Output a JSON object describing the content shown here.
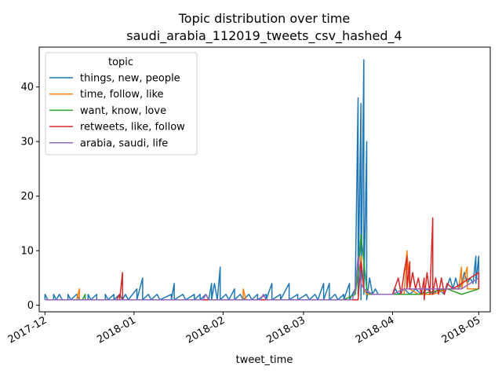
{
  "chart_data": {
    "type": "line",
    "title": "Topic distribution over time",
    "subtitle": "saudi_arabia_112019_tweets_csv_hashed_4",
    "xlabel": "tweet_time",
    "ylabel": "",
    "xlim": [
      "2017-11-29",
      "2018-05-05"
    ],
    "ylim": [
      -1.2,
      47.3
    ],
    "x_ticks": [
      "2017-12",
      "2018-01",
      "2018-02",
      "2018-03",
      "2018-04",
      "2018-05"
    ],
    "x_tick_values": [
      "2017-12-01",
      "2018-01-01",
      "2018-02-01",
      "2018-03-01",
      "2018-04-01",
      "2018-05-01"
    ],
    "y_ticks": [
      0,
      10,
      20,
      30,
      40
    ],
    "legend": {
      "title": "topic",
      "position": "upper-left"
    },
    "series": [
      {
        "name": "things, new, people",
        "color": "#1f77b4",
        "points": [
          [
            "2017-12-01",
            1
          ],
          [
            "2017-12-01",
            2
          ],
          [
            "2017-12-02",
            1
          ],
          [
            "2017-12-04",
            1
          ],
          [
            "2017-12-04",
            2
          ],
          [
            "2017-12-05",
            1
          ],
          [
            "2017-12-06",
            2
          ],
          [
            "2017-12-07",
            1
          ],
          [
            "2017-12-09",
            1
          ],
          [
            "2017-12-09",
            2
          ],
          [
            "2017-12-10",
            1
          ],
          [
            "2017-12-12",
            2
          ],
          [
            "2017-12-13",
            1
          ],
          [
            "2017-12-16",
            1
          ],
          [
            "2017-12-16",
            2
          ],
          [
            "2017-12-17",
            1
          ],
          [
            "2017-12-19",
            2
          ],
          [
            "2017-12-19",
            1
          ],
          [
            "2017-12-22",
            1
          ],
          [
            "2017-12-22",
            2
          ],
          [
            "2017-12-23",
            1
          ],
          [
            "2017-12-25",
            2
          ],
          [
            "2017-12-25",
            1
          ],
          [
            "2017-12-27",
            2
          ],
          [
            "2017-12-28",
            1
          ],
          [
            "2017-12-29",
            2
          ],
          [
            "2017-12-30",
            1
          ],
          [
            "2018-01-02",
            3
          ],
          [
            "2018-01-02",
            1
          ],
          [
            "2018-01-04",
            5
          ],
          [
            "2018-01-04",
            1
          ],
          [
            "2018-01-06",
            2
          ],
          [
            "2018-01-07",
            1
          ],
          [
            "2018-01-09",
            2
          ],
          [
            "2018-01-10",
            1
          ],
          [
            "2018-01-14",
            2
          ],
          [
            "2018-01-14",
            1
          ],
          [
            "2018-01-15",
            4
          ],
          [
            "2018-01-15",
            1
          ],
          [
            "2018-01-18",
            2
          ],
          [
            "2018-01-19",
            1
          ],
          [
            "2018-01-22",
            2
          ],
          [
            "2018-01-22",
            1
          ],
          [
            "2018-01-24",
            2
          ],
          [
            "2018-01-24",
            1
          ],
          [
            "2018-01-26",
            2
          ],
          [
            "2018-01-27",
            1
          ],
          [
            "2018-01-28",
            4
          ],
          [
            "2018-01-28",
            1
          ],
          [
            "2018-01-29",
            4
          ],
          [
            "2018-01-30",
            1
          ],
          [
            "2018-01-31",
            7
          ],
          [
            "2018-01-31",
            1
          ],
          [
            "2018-02-02",
            2
          ],
          [
            "2018-02-03",
            1
          ],
          [
            "2018-02-05",
            3
          ],
          [
            "2018-02-05",
            1
          ],
          [
            "2018-02-07",
            2
          ],
          [
            "2018-02-08",
            1
          ],
          [
            "2018-02-10",
            2
          ],
          [
            "2018-02-11",
            1
          ],
          [
            "2018-02-13",
            2
          ],
          [
            "2018-02-13",
            1
          ],
          [
            "2018-02-16",
            2
          ],
          [
            "2018-02-16",
            1
          ],
          [
            "2018-02-18",
            4
          ],
          [
            "2018-02-18",
            1
          ],
          [
            "2018-02-21",
            2
          ],
          [
            "2018-02-21",
            1
          ],
          [
            "2018-02-24",
            4
          ],
          [
            "2018-02-24",
            1
          ],
          [
            "2018-02-27",
            2
          ],
          [
            "2018-02-27",
            1
          ],
          [
            "2018-03-02",
            2
          ],
          [
            "2018-03-03",
            1
          ],
          [
            "2018-03-05",
            2
          ],
          [
            "2018-03-06",
            1
          ],
          [
            "2018-03-08",
            4
          ],
          [
            "2018-03-08",
            1
          ],
          [
            "2018-03-10",
            4
          ],
          [
            "2018-03-10",
            1
          ],
          [
            "2018-03-12",
            2
          ],
          [
            "2018-03-13",
            1
          ],
          [
            "2018-03-15",
            2
          ],
          [
            "2018-03-15",
            1
          ],
          [
            "2018-03-17",
            4
          ],
          [
            "2018-03-17",
            1
          ],
          [
            "2018-03-18",
            2
          ],
          [
            "2018-03-19",
            3
          ],
          [
            "2018-03-20",
            38
          ],
          [
            "2018-03-20",
            2
          ],
          [
            "2018-03-21",
            37
          ],
          [
            "2018-03-21",
            1
          ],
          [
            "2018-03-22",
            45
          ],
          [
            "2018-03-22",
            2
          ],
          [
            "2018-03-23",
            30
          ],
          [
            "2018-03-23",
            1
          ],
          [
            "2018-03-24",
            5
          ],
          [
            "2018-03-25",
            2
          ],
          [
            "2018-03-26",
            3
          ],
          [
            "2018-03-27",
            2
          ],
          [
            "2018-03-29",
            2
          ],
          [
            "2018-04-01",
            2
          ],
          [
            "2018-04-02",
            3
          ],
          [
            "2018-04-03",
            2
          ],
          [
            "2018-04-05",
            3
          ],
          [
            "2018-04-07",
            2
          ],
          [
            "2018-04-09",
            3
          ],
          [
            "2018-04-11",
            2
          ],
          [
            "2018-04-13",
            3
          ],
          [
            "2018-04-15",
            2
          ],
          [
            "2018-04-17",
            3
          ],
          [
            "2018-04-19",
            2
          ],
          [
            "2018-04-21",
            5
          ],
          [
            "2018-04-22",
            3
          ],
          [
            "2018-04-23",
            5
          ],
          [
            "2018-04-24",
            3
          ],
          [
            "2018-04-25",
            4
          ],
          [
            "2018-04-26",
            6
          ],
          [
            "2018-04-27",
            4
          ],
          [
            "2018-04-28",
            5
          ],
          [
            "2018-04-29",
            4
          ],
          [
            "2018-04-30",
            9
          ],
          [
            "2018-04-30",
            4
          ],
          [
            "2018-05-01",
            9
          ],
          [
            "2018-05-01",
            3
          ]
        ]
      },
      {
        "name": "time, follow, like",
        "color": "#ff7f0e",
        "points": [
          [
            "2017-12-12",
            1
          ],
          [
            "2017-12-13",
            3
          ],
          [
            "2017-12-13",
            1
          ],
          [
            "2018-02-08",
            1
          ],
          [
            "2018-02-08",
            3
          ],
          [
            "2018-02-09",
            1
          ],
          [
            "2018-03-20",
            1
          ],
          [
            "2018-03-21",
            9
          ],
          [
            "2018-03-22",
            3
          ],
          [
            "2018-03-23",
            2
          ],
          [
            "2018-04-01",
            2
          ],
          [
            "2018-04-05",
            2
          ],
          [
            "2018-04-06",
            10
          ],
          [
            "2018-04-07",
            3
          ],
          [
            "2018-04-10",
            2
          ],
          [
            "2018-04-15",
            2
          ],
          [
            "2018-04-20",
            3
          ],
          [
            "2018-04-24",
            3
          ],
          [
            "2018-04-25",
            7
          ],
          [
            "2018-04-25",
            3
          ],
          [
            "2018-04-27",
            7
          ],
          [
            "2018-04-27",
            3
          ],
          [
            "2018-05-01",
            3
          ]
        ]
      },
      {
        "name": "want, know, love",
        "color": "#2ca02c",
        "points": [
          [
            "2017-12-14",
            1
          ],
          [
            "2017-12-15",
            2
          ],
          [
            "2017-12-15",
            1
          ],
          [
            "2018-02-20",
            1
          ],
          [
            "2018-03-15",
            1
          ],
          [
            "2018-03-19",
            2
          ],
          [
            "2018-03-20",
            6
          ],
          [
            "2018-03-21",
            13
          ],
          [
            "2018-03-22",
            8
          ],
          [
            "2018-03-23",
            3
          ],
          [
            "2018-03-24",
            2
          ],
          [
            "2018-03-26",
            2
          ],
          [
            "2018-04-01",
            2
          ],
          [
            "2018-04-10",
            2
          ],
          [
            "2018-04-20",
            3
          ],
          [
            "2018-04-25",
            2
          ],
          [
            "2018-05-01",
            3
          ]
        ]
      },
      {
        "name": "retweets, like, follow",
        "color": "#d62728",
        "points": [
          [
            "2017-12-26",
            1
          ],
          [
            "2017-12-27",
            2
          ],
          [
            "2017-12-27",
            1
          ],
          [
            "2017-12-28",
            6
          ],
          [
            "2017-12-28",
            1
          ],
          [
            "2017-12-30",
            1
          ],
          [
            "2018-03-20",
            1
          ],
          [
            "2018-03-21",
            8
          ],
          [
            "2018-03-22",
            3
          ],
          [
            "2018-03-25",
            2
          ],
          [
            "2018-04-01",
            2
          ],
          [
            "2018-04-03",
            5
          ],
          [
            "2018-04-04",
            2
          ],
          [
            "2018-04-05",
            6
          ],
          [
            "2018-04-06",
            9
          ],
          [
            "2018-04-06",
            3
          ],
          [
            "2018-04-07",
            8
          ],
          [
            "2018-04-07",
            3
          ],
          [
            "2018-04-08",
            6
          ],
          [
            "2018-04-09",
            3
          ],
          [
            "2018-04-10",
            5
          ],
          [
            "2018-04-11",
            2
          ],
          [
            "2018-04-12",
            5
          ],
          [
            "2018-04-12",
            1
          ],
          [
            "2018-04-13",
            6
          ],
          [
            "2018-04-14",
            2
          ],
          [
            "2018-04-15",
            16
          ],
          [
            "2018-04-15",
            2
          ],
          [
            "2018-04-16",
            5
          ],
          [
            "2018-04-17",
            2
          ],
          [
            "2018-04-18",
            5
          ],
          [
            "2018-04-19",
            2
          ],
          [
            "2018-04-20",
            4
          ],
          [
            "2018-04-22",
            3
          ],
          [
            "2018-04-25",
            4
          ],
          [
            "2018-05-01",
            6
          ],
          [
            "2018-05-01",
            3
          ]
        ]
      },
      {
        "name": "arabia, saudi, life",
        "color": "#9467bd",
        "points": [
          [
            "2017-12-01",
            1
          ],
          [
            "2018-01-25",
            1
          ],
          [
            "2018-01-26",
            2
          ],
          [
            "2018-01-27",
            1
          ],
          [
            "2018-02-14",
            1
          ],
          [
            "2018-02-15",
            2
          ],
          [
            "2018-02-16",
            1
          ],
          [
            "2018-03-18",
            1
          ],
          [
            "2018-03-19",
            3
          ],
          [
            "2018-03-20",
            9
          ],
          [
            "2018-03-21",
            4
          ],
          [
            "2018-03-22",
            3
          ],
          [
            "2018-03-25",
            2
          ],
          [
            "2018-04-01",
            2
          ],
          [
            "2018-04-05",
            3
          ],
          [
            "2018-04-10",
            3
          ],
          [
            "2018-04-15",
            3
          ],
          [
            "2018-04-20",
            3
          ],
          [
            "2018-04-25",
            3
          ],
          [
            "2018-05-01",
            5
          ]
        ]
      }
    ]
  }
}
